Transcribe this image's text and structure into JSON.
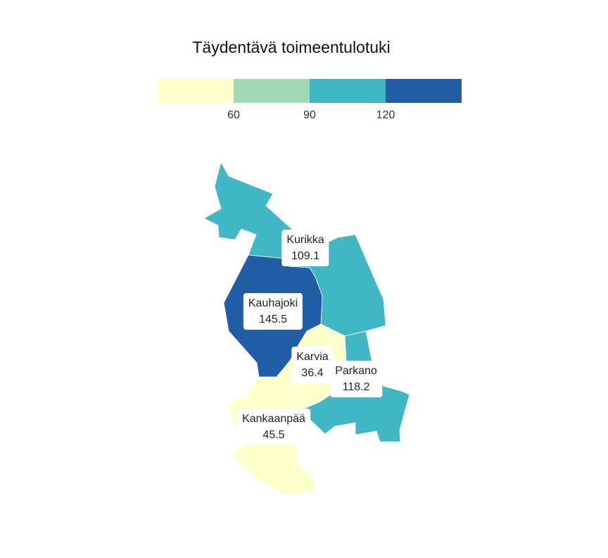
{
  "title": "Täydentävä toimeentulotuki",
  "legend": {
    "colors": [
      "#ffffcc",
      "#a1dab4",
      "#41b6c4",
      "#225ea8"
    ],
    "ticks": [
      "60",
      "90",
      "120"
    ]
  },
  "regions": [
    {
      "name": "Kurikka",
      "value": "109.1",
      "color": "#41b6c4"
    },
    {
      "name": "Kauhajoki",
      "value": "145.5",
      "color": "#225ea8"
    },
    {
      "name": "Karvia",
      "value": "36.4",
      "color": "#ffffcc"
    },
    {
      "name": "Parkano",
      "value": "118.2",
      "color": "#41b6c4"
    },
    {
      "name": "Kankaanpää",
      "value": "45.5",
      "color": "#ffffcc"
    }
  ]
}
